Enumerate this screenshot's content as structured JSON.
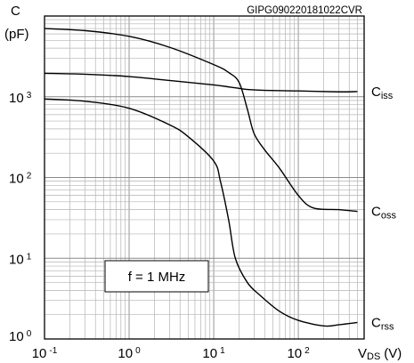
{
  "chart_data": {
    "type": "line",
    "code": "GIPG090220181022CVR",
    "ylabel": "C",
    "yunit": "(pF)",
    "xlabel_main": "V",
    "xlabel_sub": "DS",
    "xlabel_unit": "(V)",
    "annotation": "f = 1 MHz",
    "x_scale": "log",
    "y_scale": "log",
    "xlim": [
      0.1,
      600
    ],
    "ylim": [
      1,
      10000
    ],
    "grid": true,
    "x_ticks": [
      {
        "value": 0.1,
        "base": "10",
        "exp": "-1"
      },
      {
        "value": 1,
        "base": "10",
        "exp": "0"
      },
      {
        "value": 10,
        "base": "10",
        "exp": "1"
      },
      {
        "value": 100,
        "base": "10",
        "exp": "2"
      }
    ],
    "y_ticks": [
      {
        "value": 1,
        "base": "10",
        "exp": "0"
      },
      {
        "value": 10,
        "base": "10",
        "exp": "1"
      },
      {
        "value": 100,
        "base": "10",
        "exp": "2"
      },
      {
        "value": 1000,
        "base": "10",
        "exp": "3"
      }
    ],
    "series": [
      {
        "name": "Ciss",
        "label_main": "C",
        "label_sub": "iss",
        "x": [
          0.1,
          0.3,
          1,
          3,
          10,
          18,
          25,
          40,
          100,
          300,
          500
        ],
        "y": [
          1950,
          1900,
          1780,
          1590,
          1400,
          1290,
          1230,
          1200,
          1180,
          1150,
          1160
        ]
      },
      {
        "name": "Coss",
        "label_main": "C",
        "label_sub": "oss",
        "x": [
          0.1,
          0.3,
          1,
          3,
          10,
          15,
          20,
          25,
          30,
          40,
          60,
          100,
          150,
          300,
          500
        ],
        "y": [
          7000,
          6600,
          5600,
          4100,
          2500,
          2000,
          1500,
          700,
          350,
          220,
          130,
          60,
          42,
          40,
          38
        ]
      },
      {
        "name": "Crss",
        "label_main": "C",
        "label_sub": "rss",
        "x": [
          0.1,
          0.3,
          1,
          3,
          5,
          10,
          12,
          15,
          18,
          25,
          35,
          60,
          100,
          200,
          300,
          500
        ],
        "y": [
          940,
          880,
          720,
          450,
          320,
          160,
          90,
          30,
          10,
          5,
          3.5,
          2.2,
          1.7,
          1.45,
          1.5,
          1.6
        ]
      }
    ]
  }
}
